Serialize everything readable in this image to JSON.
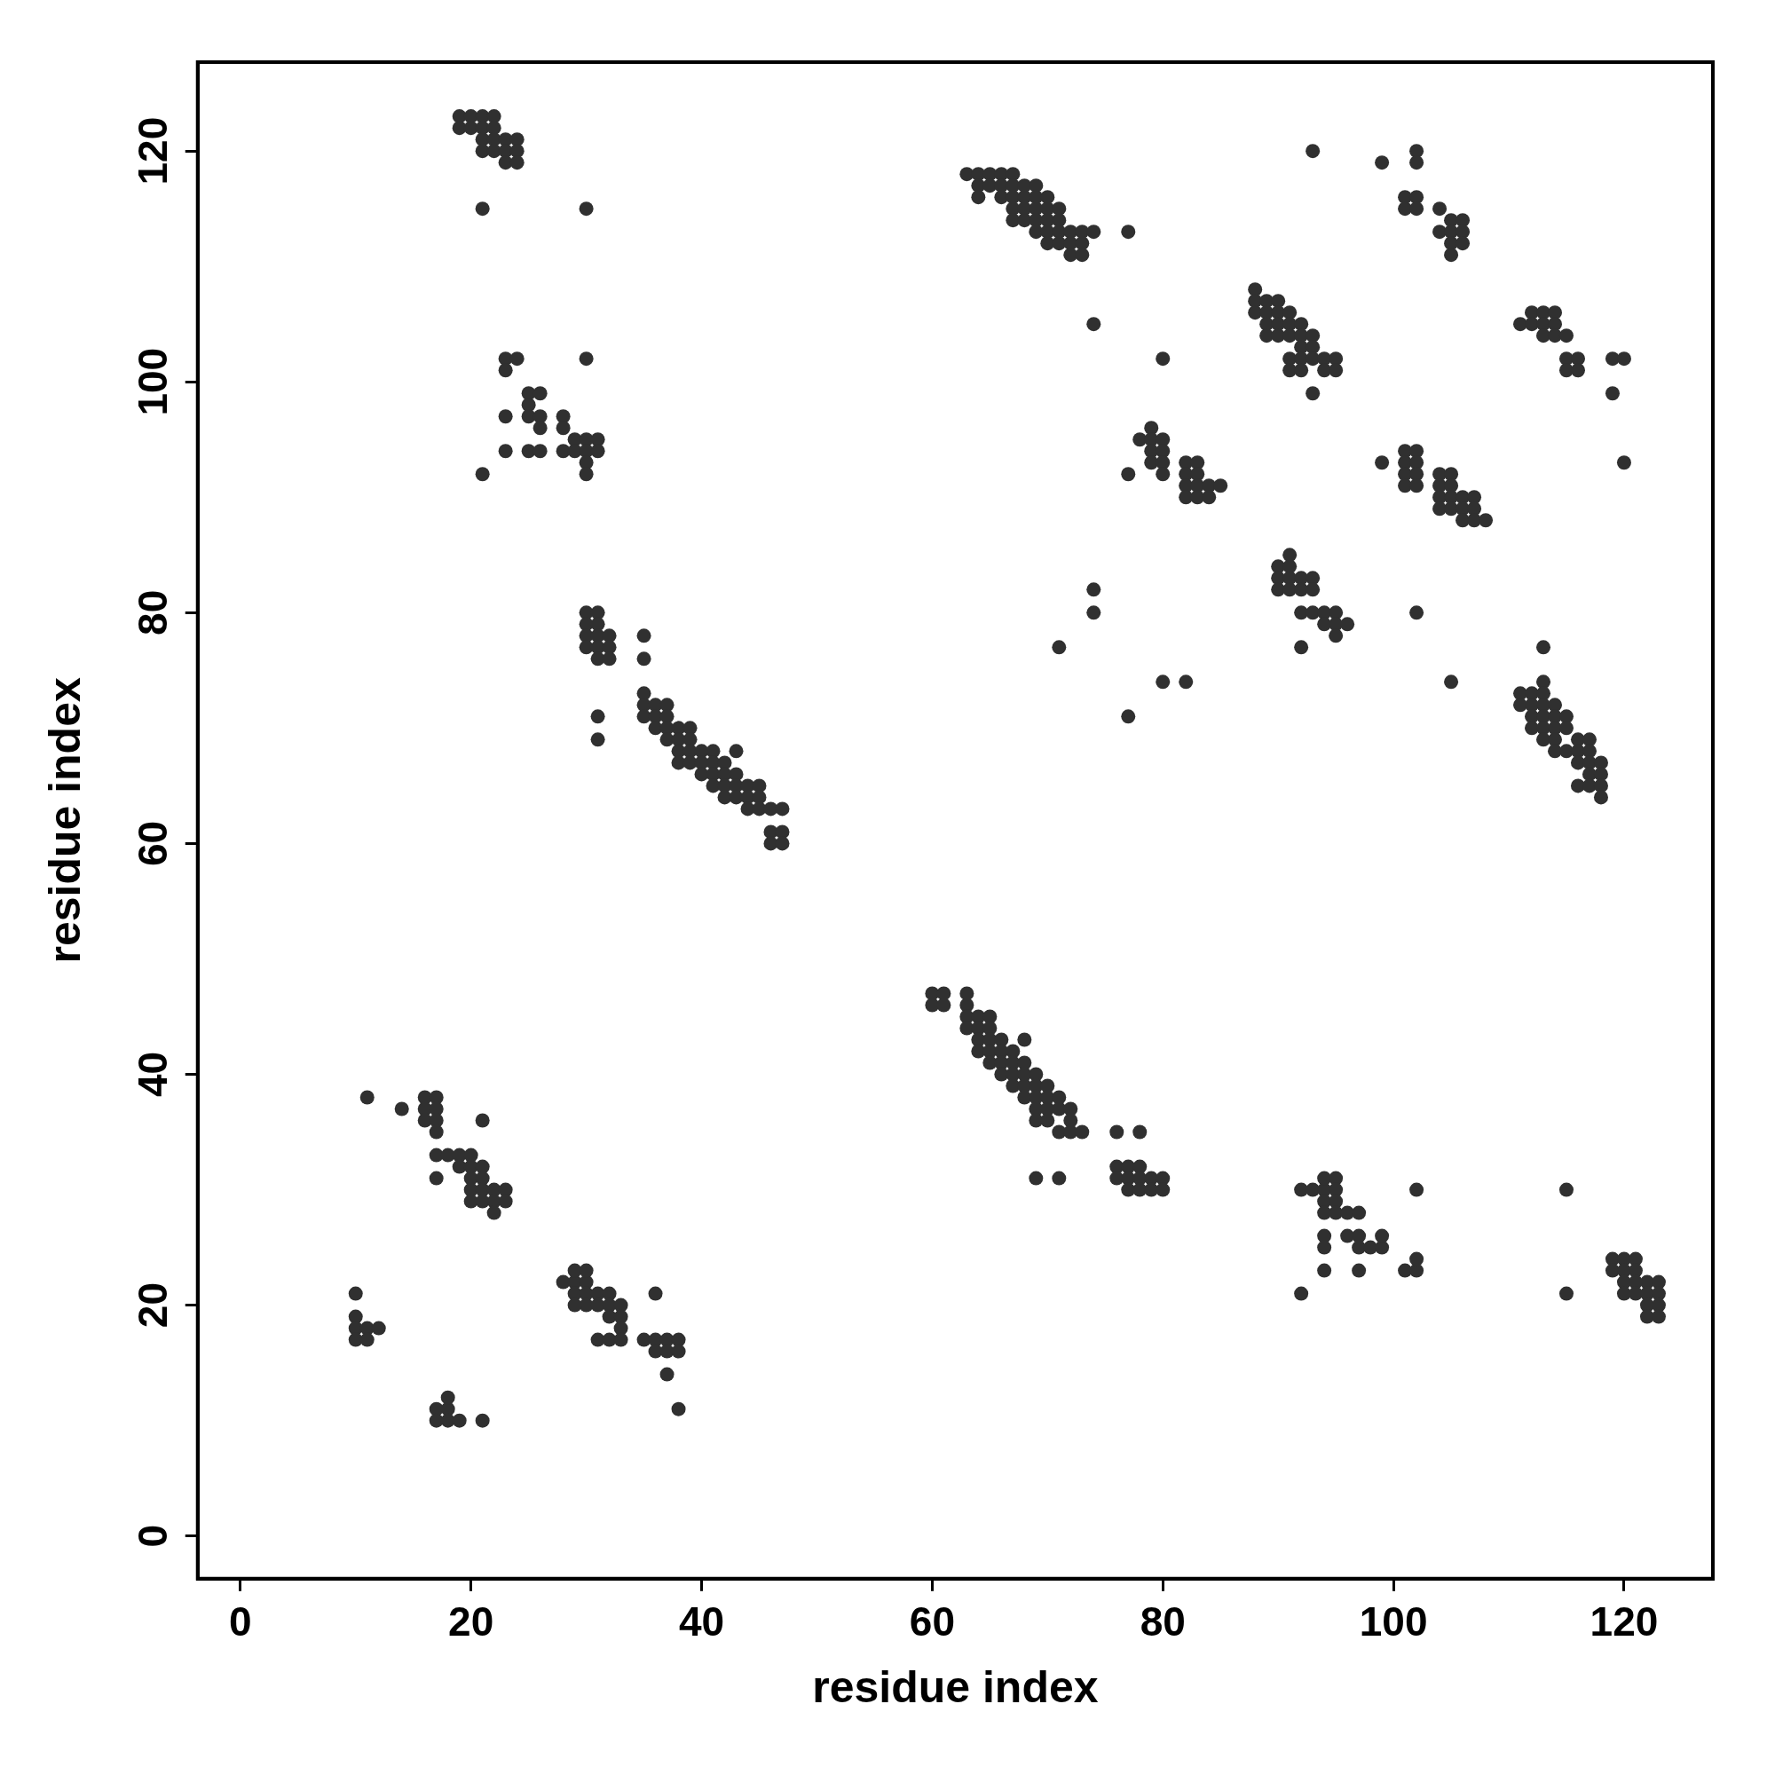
{
  "chart_data": {
    "type": "scatter",
    "xlabel": "residue index",
    "ylabel": "residue index",
    "xlim": [
      -3.7,
      127.7
    ],
    "ylim": [
      -3.7,
      127.7
    ],
    "xticks": [
      0,
      20,
      40,
      60,
      80,
      100,
      120
    ],
    "yticks": [
      0,
      20,
      40,
      60,
      80,
      100,
      120
    ],
    "grid": false,
    "legend": false,
    "marker": "circle",
    "series": [
      {
        "color": "#303030",
        "x": [
          19,
          20,
          21,
          22,
          19,
          20,
          21,
          22,
          21,
          22,
          23,
          24,
          21,
          22,
          23,
          24,
          23,
          24,
          21,
          30,
          23,
          24,
          23,
          25,
          26,
          25,
          23,
          25,
          26,
          26,
          28,
          28,
          29,
          30,
          31,
          28,
          29,
          30,
          31,
          23,
          25,
          26,
          30,
          21,
          30,
          30,
          30,
          31,
          30,
          31,
          30,
          31,
          32,
          30,
          31,
          32,
          31,
          32,
          35,
          35,
          31,
          31,
          35,
          35,
          36,
          37,
          35,
          36,
          37,
          38,
          39,
          36,
          37,
          37,
          38,
          39,
          38,
          39,
          40,
          41,
          43,
          38,
          39,
          40,
          41,
          42,
          40,
          41,
          42,
          43,
          41,
          42,
          43,
          44,
          45,
          42,
          43,
          44,
          45,
          44,
          45,
          46,
          47,
          46,
          47,
          46,
          47,
          11,
          14,
          16,
          17,
          16,
          17,
          16,
          17,
          21,
          17,
          17,
          18,
          19,
          20,
          17,
          19,
          20,
          21,
          20,
          21,
          20,
          21,
          22,
          23,
          20,
          21,
          22,
          23,
          22,
          10,
          10,
          10,
          11,
          12,
          10,
          11,
          17,
          18,
          17,
          18,
          19,
          18,
          21,
          28,
          29,
          30,
          29,
          30,
          29,
          30,
          31,
          32,
          30,
          31,
          32,
          33,
          29,
          32,
          33,
          33,
          31,
          32,
          33,
          36,
          35,
          36,
          37,
          38,
          36,
          37,
          38,
          37,
          38,
          60,
          61,
          60,
          61,
          63,
          63,
          63,
          64,
          65,
          63,
          64,
          65,
          64,
          65,
          66,
          68,
          64,
          65,
          66,
          67,
          65,
          66,
          67,
          68,
          66,
          67,
          68,
          69,
          67,
          68,
          69,
          70,
          68,
          69,
          70,
          71,
          69,
          70,
          71,
          72,
          69,
          70,
          72,
          71,
          72,
          73,
          69,
          71,
          76,
          78,
          76,
          77,
          78,
          76,
          77,
          78,
          79,
          80,
          77,
          78,
          79,
          80,
          92,
          93,
          94,
          94,
          95,
          95,
          94,
          95,
          94,
          95,
          96,
          97,
          94,
          96,
          97,
          94,
          97,
          98,
          99,
          99,
          94,
          97,
          92,
          101,
          102,
          102,
          102,
          119,
          120,
          121,
          119,
          120,
          121,
          122,
          123,
          120,
          121,
          120,
          121,
          122,
          123,
          122,
          123,
          122,
          123,
          115,
          115,
          63,
          64,
          65,
          66,
          67,
          64,
          65,
          66,
          67,
          68,
          69,
          64,
          66,
          67,
          68,
          69,
          70,
          67,
          68,
          69,
          70,
          71,
          67,
          68,
          69,
          70,
          71,
          69,
          70,
          71,
          72,
          73,
          74,
          70,
          71,
          72,
          73,
          72,
          73,
          77,
          74,
          88,
          88,
          89,
          90,
          88,
          89,
          90,
          91,
          89,
          90,
          91,
          92,
          89,
          90,
          91,
          92,
          93,
          92,
          93,
          91,
          92,
          93,
          94,
          95,
          91,
          92,
          94,
          95,
          93,
          80,
          79,
          78,
          79,
          80,
          79,
          80,
          79,
          80,
          82,
          83,
          80,
          82,
          83,
          82,
          83,
          84,
          85,
          82,
          83,
          84,
          77,
          91,
          90,
          91,
          90,
          91,
          92,
          93,
          90,
          91,
          92,
          93,
          92,
          93,
          94,
          95,
          94,
          95,
          96,
          95,
          92,
          74,
          74,
          71,
          77,
          80,
          82,
          99,
          101,
          102,
          101,
          102,
          101,
          102,
          101,
          102,
          104,
          105,
          104,
          105,
          104,
          105,
          106,
          107,
          104,
          105,
          106,
          107,
          106,
          107,
          108,
          102,
          105,
          93,
          99,
          102,
          102,
          101,
          102,
          101,
          102,
          104,
          105,
          106,
          104,
          105,
          106,
          105,
          106,
          105,
          111,
          112,
          113,
          114,
          112,
          113,
          114,
          113,
          114,
          115,
          115,
          116,
          115,
          116,
          119,
          120,
          119,
          120,
          113,
          113,
          111,
          112,
          113,
          111,
          112,
          113,
          114,
          112,
          113,
          114,
          115,
          112,
          113,
          114,
          115,
          113,
          114,
          116,
          117,
          114,
          115,
          116,
          117,
          116,
          117,
          118,
          117,
          118,
          116,
          117,
          118,
          118
        ],
        "values": [
          123,
          123,
          123,
          123,
          122,
          122,
          122,
          122,
          121,
          121,
          121,
          121,
          120,
          120,
          120,
          120,
          119,
          119,
          115,
          115,
          102,
          102,
          101,
          99,
          99,
          98,
          97,
          97,
          97,
          96,
          97,
          96,
          95,
          95,
          95,
          94,
          94,
          94,
          94,
          94,
          94,
          94,
          93,
          92,
          92,
          102,
          80,
          80,
          79,
          79,
          78,
          78,
          78,
          77,
          77,
          77,
          76,
          76,
          78,
          76,
          71,
          69,
          73,
          72,
          72,
          72,
          71,
          71,
          71,
          70,
          70,
          70,
          70,
          69,
          69,
          69,
          68,
          68,
          68,
          68,
          68,
          67,
          67,
          67,
          67,
          67,
          66,
          66,
          66,
          66,
          65,
          65,
          65,
          65,
          65,
          64,
          64,
          64,
          64,
          63,
          63,
          63,
          63,
          61,
          61,
          60,
          60,
          38,
          37,
          38,
          38,
          37,
          37,
          36,
          36,
          36,
          35,
          33,
          33,
          33,
          33,
          31,
          32,
          32,
          32,
          31,
          31,
          30,
          30,
          30,
          30,
          29,
          29,
          29,
          29,
          28,
          21,
          19,
          18,
          18,
          18,
          17,
          17,
          11,
          11,
          10,
          10,
          10,
          12,
          10,
          22,
          22,
          22,
          23,
          23,
          21,
          21,
          21,
          21,
          20,
          20,
          20,
          20,
          20,
          19,
          19,
          18,
          17,
          17,
          17,
          21,
          17,
          17,
          17,
          17,
          16,
          16,
          16,
          14,
          11,
          47,
          47,
          46,
          46,
          47,
          46,
          45,
          45,
          45,
          44,
          44,
          44,
          43,
          43,
          43,
          43,
          42,
          42,
          42,
          42,
          41,
          41,
          41,
          41,
          40,
          40,
          40,
          40,
          39,
          39,
          39,
          39,
          38,
          38,
          38,
          38,
          37,
          37,
          37,
          37,
          36,
          36,
          36,
          35,
          35,
          35,
          31,
          31,
          35,
          35,
          32,
          32,
          32,
          31,
          31,
          31,
          31,
          31,
          30,
          30,
          30,
          30,
          30,
          30,
          30,
          31,
          31,
          30,
          29,
          29,
          28,
          28,
          28,
          28,
          26,
          26,
          26,
          25,
          25,
          25,
          25,
          26,
          23,
          23,
          21,
          23,
          23,
          24,
          30,
          24,
          24,
          24,
          23,
          23,
          23,
          22,
          22,
          22,
          22,
          21,
          21,
          21,
          21,
          20,
          20,
          19,
          19,
          30,
          21,
          118,
          118,
          118,
          118,
          118,
          117,
          117,
          117,
          117,
          117,
          117,
          116,
          116,
          116,
          116,
          116,
          116,
          115,
          115,
          115,
          115,
          115,
          114,
          114,
          114,
          114,
          114,
          113,
          113,
          113,
          113,
          113,
          113,
          112,
          112,
          112,
          112,
          111,
          111,
          113,
          105,
          108,
          107,
          107,
          107,
          106,
          106,
          106,
          106,
          105,
          105,
          105,
          105,
          104,
          104,
          104,
          104,
          104,
          103,
          103,
          102,
          102,
          102,
          102,
          102,
          101,
          101,
          101,
          101,
          99,
          102,
          96,
          95,
          95,
          95,
          94,
          94,
          93,
          93,
          93,
          93,
          92,
          92,
          92,
          91,
          91,
          91,
          91,
          90,
          90,
          90,
          92,
          85,
          84,
          84,
          83,
          83,
          83,
          83,
          82,
          82,
          82,
          82,
          80,
          80,
          80,
          80,
          79,
          79,
          79,
          78,
          77,
          82,
          80,
          77,
          71,
          74,
          74,
          93,
          94,
          94,
          93,
          93,
          92,
          92,
          91,
          91,
          92,
          92,
          91,
          91,
          90,
          90,
          90,
          90,
          89,
          89,
          89,
          89,
          88,
          88,
          88,
          80,
          74,
          120,
          119,
          120,
          119,
          116,
          116,
          115,
          115,
          115,
          114,
          114,
          113,
          113,
          113,
          112,
          112,
          111,
          105,
          106,
          106,
          106,
          105,
          105,
          105,
          104,
          104,
          104,
          102,
          102,
          101,
          101,
          102,
          102,
          99,
          93,
          77,
          74,
          73,
          73,
          73,
          72,
          72,
          72,
          72,
          71,
          71,
          71,
          71,
          70,
          70,
          70,
          70,
          69,
          69,
          69,
          69,
          68,
          68,
          68,
          68,
          67,
          67,
          67,
          66,
          66,
          65,
          65,
          65,
          64
        ]
      }
    ]
  }
}
